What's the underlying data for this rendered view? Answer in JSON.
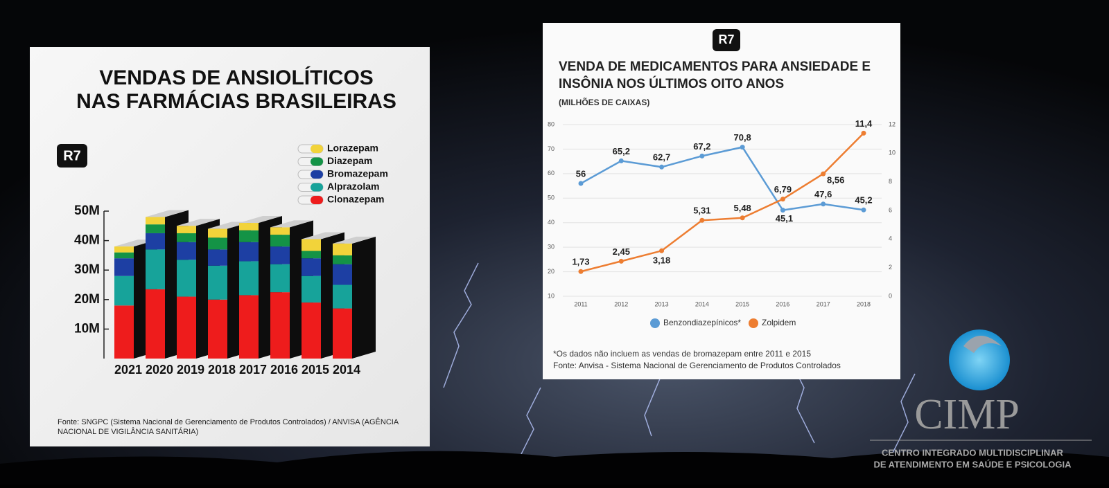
{
  "chart_data": [
    {
      "type": "bar",
      "stacked": true,
      "logo": "R7",
      "title": [
        "VENDAS DE ANSIOLÍTICOS",
        "NAS FARMÁCIAS BRASILEIRAS"
      ],
      "categories": [
        "2021",
        "2020",
        "2019",
        "2018",
        "2017",
        "2016",
        "2015",
        "2014"
      ],
      "series": [
        {
          "name": "Clonazepam",
          "color": "#ee1c1c",
          "values": [
            18,
            23.5,
            21,
            20,
            21.5,
            22.5,
            19,
            17
          ]
        },
        {
          "name": "Alprazolam",
          "color": "#17a39a",
          "values": [
            10,
            13.5,
            12.5,
            11.5,
            11.5,
            9.5,
            9,
            8
          ]
        },
        {
          "name": "Bromazepam",
          "color": "#1d3fa3",
          "values": [
            6,
            5.5,
            6,
            5.5,
            6.5,
            6,
            6,
            7
          ]
        },
        {
          "name": "Diazepam",
          "color": "#149346",
          "values": [
            2,
            3,
            3,
            4,
            4,
            4,
            2.5,
            3
          ]
        },
        {
          "name": "Lorazepam",
          "color": "#f2d33a",
          "values": [
            2,
            2.5,
            2.5,
            3,
            2.5,
            2.5,
            4,
            4
          ]
        }
      ],
      "ylim": [
        0,
        50
      ],
      "yticks": [
        {
          "value": 10,
          "label": "10M"
        },
        {
          "value": 20,
          "label": "20M"
        },
        {
          "value": 30,
          "label": "30M"
        },
        {
          "value": 40,
          "label": "40M"
        },
        {
          "value": 50,
          "label": "50M"
        }
      ],
      "source": [
        "Fonte: SNGPC (Sistema Nacional de Gerenciamento de Produtos Controlados) / ANVISA (AGÊNCIA",
        "NACIONAL DE VIGILÂNCIA SANITÁRIA)"
      ]
    },
    {
      "type": "line",
      "logo": "R7",
      "title": [
        "VENDA DE MEDICAMENTOS PARA ANSIEDADE E",
        "INSÔNIA NOS ÚLTIMOS OITO ANOS"
      ],
      "subtitle": "(MILHÕES DE CAIXAS)",
      "categories": [
        "2011",
        "2012",
        "2013",
        "2014",
        "2015",
        "2016",
        "2017",
        "2018"
      ],
      "series": [
        {
          "name": "Benzondiazepínicos*",
          "color": "#5b9bd5",
          "values": [
            56,
            65.2,
            62.7,
            67.2,
            70.8,
            45.1,
            47.6,
            45.2
          ],
          "value_labels": [
            "56",
            "65,2",
            "62,7",
            "67,2",
            "70,8",
            "45,1",
            "47,6",
            "45,2"
          ]
        },
        {
          "name": "Zolpidem",
          "color": "#ed7d31",
          "axis": "y2",
          "values": [
            1.73,
            2.45,
            3.18,
            5.31,
            5.48,
            6.79,
            8.56,
            11.4
          ],
          "value_labels": [
            "1,73",
            "2,45",
            "3,18",
            "5,31",
            "5,48",
            "6,79",
            "8,56",
            "11,4"
          ]
        }
      ],
      "ylim": [
        10,
        80
      ],
      "yticks": [
        10,
        20,
        30,
        40,
        50,
        60,
        70,
        80
      ],
      "y2lim": [
        0,
        12
      ],
      "y2ticks": [
        0,
        2,
        4,
        6,
        8,
        10,
        12
      ],
      "grid": true,
      "note": "*Os dados não incluem as vendas de bromazepam entre 2011 e 2015",
      "source": "Fonte: Anvisa - Sistema Nacional de Gerenciamento de Produtos Controlados"
    }
  ],
  "logo": {
    "name": "CIMP",
    "tagline": [
      "CENTRO INTEGRADO MULTIDISCIPLINAR",
      "DE ATENDIMENTO EM SAÚDE E PSICOLOGIA"
    ]
  }
}
